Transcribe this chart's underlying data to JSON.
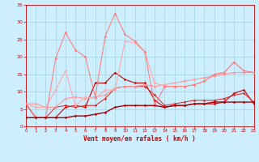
{
  "xlabel": "Vent moyen/en rafales ( km/h )",
  "xlim": [
    0,
    23
  ],
  "ylim": [
    0,
    35
  ],
  "yticks": [
    0,
    5,
    10,
    15,
    20,
    25,
    30,
    35
  ],
  "xticks": [
    0,
    1,
    2,
    3,
    4,
    5,
    6,
    7,
    8,
    9,
    10,
    11,
    12,
    13,
    14,
    15,
    16,
    17,
    18,
    19,
    20,
    21,
    22,
    23
  ],
  "bg_color": "#cceeff",
  "grid_color": "#99cccc",
  "lines": [
    {
      "x": [
        0,
        1,
        2,
        3,
        4,
        5,
        6,
        7,
        8,
        9,
        10,
        11,
        12,
        13,
        14,
        15,
        16,
        17,
        18,
        19,
        20,
        21,
        22,
        23
      ],
      "y": [
        6.5,
        2.5,
        2.5,
        2.5,
        5.5,
        6.0,
        5.5,
        12.5,
        12.5,
        15.5,
        13.5,
        12.5,
        12.5,
        7.5,
        5.5,
        6.0,
        6.0,
        6.5,
        6.5,
        6.5,
        7.0,
        9.5,
        10.5,
        6.5
      ],
      "color": "#cc0000",
      "lw": 0.8,
      "marker": "D",
      "ms": 1.5
    },
    {
      "x": [
        0,
        1,
        2,
        3,
        4,
        5,
        6,
        7,
        8,
        9,
        10,
        11,
        12,
        13,
        14,
        15,
        16,
        17,
        18,
        19,
        20,
        21,
        22,
        23
      ],
      "y": [
        2.5,
        2.5,
        2.5,
        5.5,
        6.0,
        5.5,
        6.0,
        6.0,
        8.0,
        11.0,
        11.5,
        11.5,
        11.5,
        9.0,
        6.0,
        6.5,
        7.0,
        7.5,
        7.5,
        7.5,
        8.0,
        9.0,
        9.5,
        7.0
      ],
      "color": "#dd2222",
      "lw": 0.7,
      "marker": "D",
      "ms": 1.5
    },
    {
      "x": [
        0,
        1,
        2,
        3,
        4,
        5,
        6,
        7,
        8,
        9,
        10,
        11,
        12,
        13,
        14,
        15,
        16,
        17,
        18,
        19,
        20,
        21,
        22,
        23
      ],
      "y": [
        6.5,
        6.5,
        5.5,
        5.5,
        8.0,
        8.5,
        8.0,
        8.5,
        9.0,
        11.0,
        11.5,
        11.5,
        12.0,
        11.5,
        12.0,
        12.5,
        13.0,
        13.5,
        14.0,
        14.5,
        15.0,
        15.5,
        15.5,
        15.5
      ],
      "color": "#ff9999",
      "lw": 0.8,
      "marker": "D",
      "ms": 1.5
    },
    {
      "x": [
        0,
        1,
        2,
        3,
        4,
        5,
        6,
        7,
        8,
        9,
        10,
        11,
        12,
        13,
        14,
        15,
        16,
        17,
        18,
        19,
        20,
        21,
        22,
        23
      ],
      "y": [
        6.5,
        5.5,
        5.5,
        10.5,
        16.0,
        6.0,
        8.5,
        8.0,
        10.5,
        10.5,
        24.5,
        24.0,
        21.5,
        12.5,
        11.5,
        11.5,
        11.5,
        12.0,
        13.0,
        15.0,
        15.5,
        18.5,
        16.0,
        15.5
      ],
      "color": "#ffaaaa",
      "lw": 0.8,
      "marker": "D",
      "ms": 1.5
    },
    {
      "x": [
        0,
        1,
        2,
        3,
        4,
        5,
        6,
        7,
        8,
        9,
        10,
        11,
        12,
        13,
        14,
        15,
        16,
        17,
        18,
        19,
        20,
        21,
        22,
        23
      ],
      "y": [
        6.5,
        2.5,
        2.5,
        19.5,
        27.0,
        22.0,
        20.0,
        8.5,
        26.0,
        32.5,
        26.5,
        24.5,
        21.5,
        6.0,
        11.5,
        11.5,
        11.5,
        12.0,
        13.0,
        15.0,
        15.5,
        18.5,
        16.0,
        15.5
      ],
      "color": "#ff7777",
      "lw": 0.7,
      "marker": "D",
      "ms": 1.5
    },
    {
      "x": [
        0,
        1,
        2,
        3,
        4,
        5,
        6,
        7,
        8,
        9,
        10,
        11,
        12,
        13,
        14,
        15,
        16,
        17,
        18,
        19,
        20,
        21,
        22,
        23
      ],
      "y": [
        2.5,
        2.5,
        2.5,
        2.5,
        2.5,
        3.0,
        3.0,
        3.5,
        4.0,
        5.5,
        6.0,
        6.0,
        6.0,
        6.0,
        5.5,
        6.0,
        6.0,
        6.5,
        6.5,
        7.0,
        7.0,
        7.0,
        7.0,
        7.0
      ],
      "color": "#aa0000",
      "lw": 1.0,
      "marker": "D",
      "ms": 1.5
    }
  ]
}
